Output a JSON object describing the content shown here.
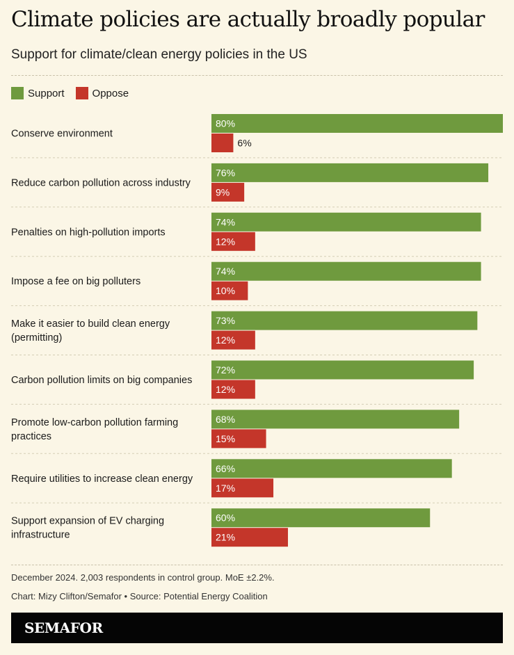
{
  "header": {
    "title": "Climate policies are actually broadly popular",
    "subtitle": "Support for climate/clean energy policies in the US"
  },
  "legend": {
    "support_label": "Support",
    "oppose_label": "Oppose"
  },
  "colors": {
    "support": "#6f9a3e",
    "oppose": "#c4362a",
    "background": "#fbf6e6"
  },
  "chart_data": {
    "type": "bar",
    "orientation": "horizontal",
    "title": "Climate policies are actually broadly popular",
    "subtitle": "Support for climate/clean energy policies in the US",
    "categories": [
      [
        "Conserve environment"
      ],
      [
        "Reduce carbon pollution across industry"
      ],
      [
        "Penalties on high-pollution imports"
      ],
      [
        "Impose a fee on big polluters"
      ],
      [
        "Make it easier to build clean energy",
        "(permitting)"
      ],
      [
        "Carbon pollution limits on big companies"
      ],
      [
        "Promote low-carbon pollution farming",
        "practices"
      ],
      [
        "Require utilities to increase clean energy"
      ],
      [
        "Support expansion of EV charging",
        "infrastructure"
      ]
    ],
    "series": [
      {
        "name": "Support",
        "values": [
          80,
          76,
          74,
          74,
          73,
          72,
          68,
          66,
          60
        ]
      },
      {
        "name": "Oppose",
        "values": [
          6,
          9,
          12,
          10,
          12,
          12,
          15,
          17,
          21
        ]
      }
    ],
    "value_suffix": "%",
    "xlim": [
      0,
      80
    ],
    "legend_position": "top-left",
    "grid": false
  },
  "footer": {
    "note": "December 2024. 2,003 respondents in control group. MoE ±2.2%.",
    "credit": "Chart: Mizy Clifton/Semafor • Source: Potential Energy Coalition",
    "brand": "SEMAFOR"
  }
}
